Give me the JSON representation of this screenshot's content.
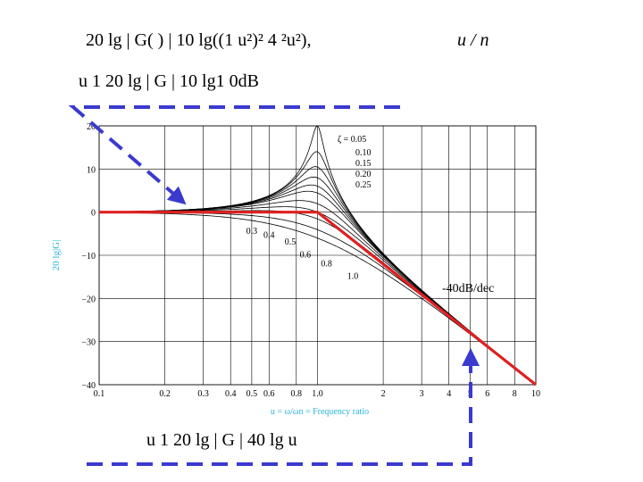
{
  "equations": {
    "line1": "20 lg | G( ) |    10 lg((1  u²)²   4 ²u²),",
    "line1_right": "u     /  n",
    "line2": "u    1        20 lg | G |    10 lg1    0dB",
    "line3": "u    1    20 lg | G |    40 lg u"
  },
  "chart_data": {
    "type": "line",
    "title": "",
    "xlabel": "u = ω/ωn = Frequency ratio",
    "ylabel": "20 lg|G|",
    "xscale": "log",
    "xlim": [
      0.1,
      10
    ],
    "ylim": [
      -40,
      20
    ],
    "xticks": [
      {
        "v": 0.1,
        "label": "0.1"
      },
      {
        "v": 0.2,
        "label": "0.2"
      },
      {
        "v": 0.3,
        "label": "0.3"
      },
      {
        "v": 0.4,
        "label": "0.4"
      },
      {
        "v": 0.5,
        "label": "0.5"
      },
      {
        "v": 0.6,
        "label": "0.6"
      },
      {
        "v": 0.8,
        "label": "0.8"
      },
      {
        "v": 1.0,
        "label": "1.0"
      },
      {
        "v": 2,
        "label": "2"
      },
      {
        "v": 3,
        "label": "3"
      },
      {
        "v": 4,
        "label": "4"
      },
      {
        "v": 5,
        "label": "5"
      },
      {
        "v": 6,
        "label": "6"
      },
      {
        "v": 8,
        "label": "8"
      },
      {
        "v": 10,
        "label": "10"
      }
    ],
    "yticks": [
      {
        "v": 20,
        "label": "20"
      },
      {
        "v": 10,
        "label": "10"
      },
      {
        "v": 0,
        "label": "0"
      },
      {
        "v": -10,
        "label": "−10"
      },
      {
        "v": -20,
        "label": "−20"
      },
      {
        "v": -30,
        "label": "−30"
      },
      {
        "v": -40,
        "label": "−40"
      }
    ],
    "zetas": [
      0.05,
      0.1,
      0.15,
      0.2,
      0.25,
      0.3,
      0.4,
      0.5,
      0.6,
      0.8,
      1.0
    ],
    "legend_title": "ζ = 0.05",
    "legend_entries": [
      "0.10",
      "0.15",
      "0.20",
      "0.25"
    ],
    "curve_labels": [
      {
        "text": "0.3",
        "u": 0.5,
        "y": -5
      },
      {
        "text": "0.4",
        "u": 0.6,
        "y": -6
      },
      {
        "text": "0.5",
        "u": 0.75,
        "y": -7.5
      },
      {
        "text": "0.6",
        "u": 0.88,
        "y": -10.5
      },
      {
        "text": "0.8",
        "u": 1.1,
        "y": -12.6
      },
      {
        "text": "1.0",
        "u": 1.45,
        "y": -15.5
      }
    ],
    "asymptote": {
      "points": [
        [
          0.1,
          0
        ],
        [
          1.0,
          0
        ],
        [
          10,
          -40
        ]
      ],
      "color": "#e02020"
    },
    "slope_label": "-40dB/dec",
    "colors": {
      "curves": "#000000",
      "asymptote": "#e02020",
      "arrows": "#3a3acf",
      "axis_label": "#29b6d9"
    }
  }
}
